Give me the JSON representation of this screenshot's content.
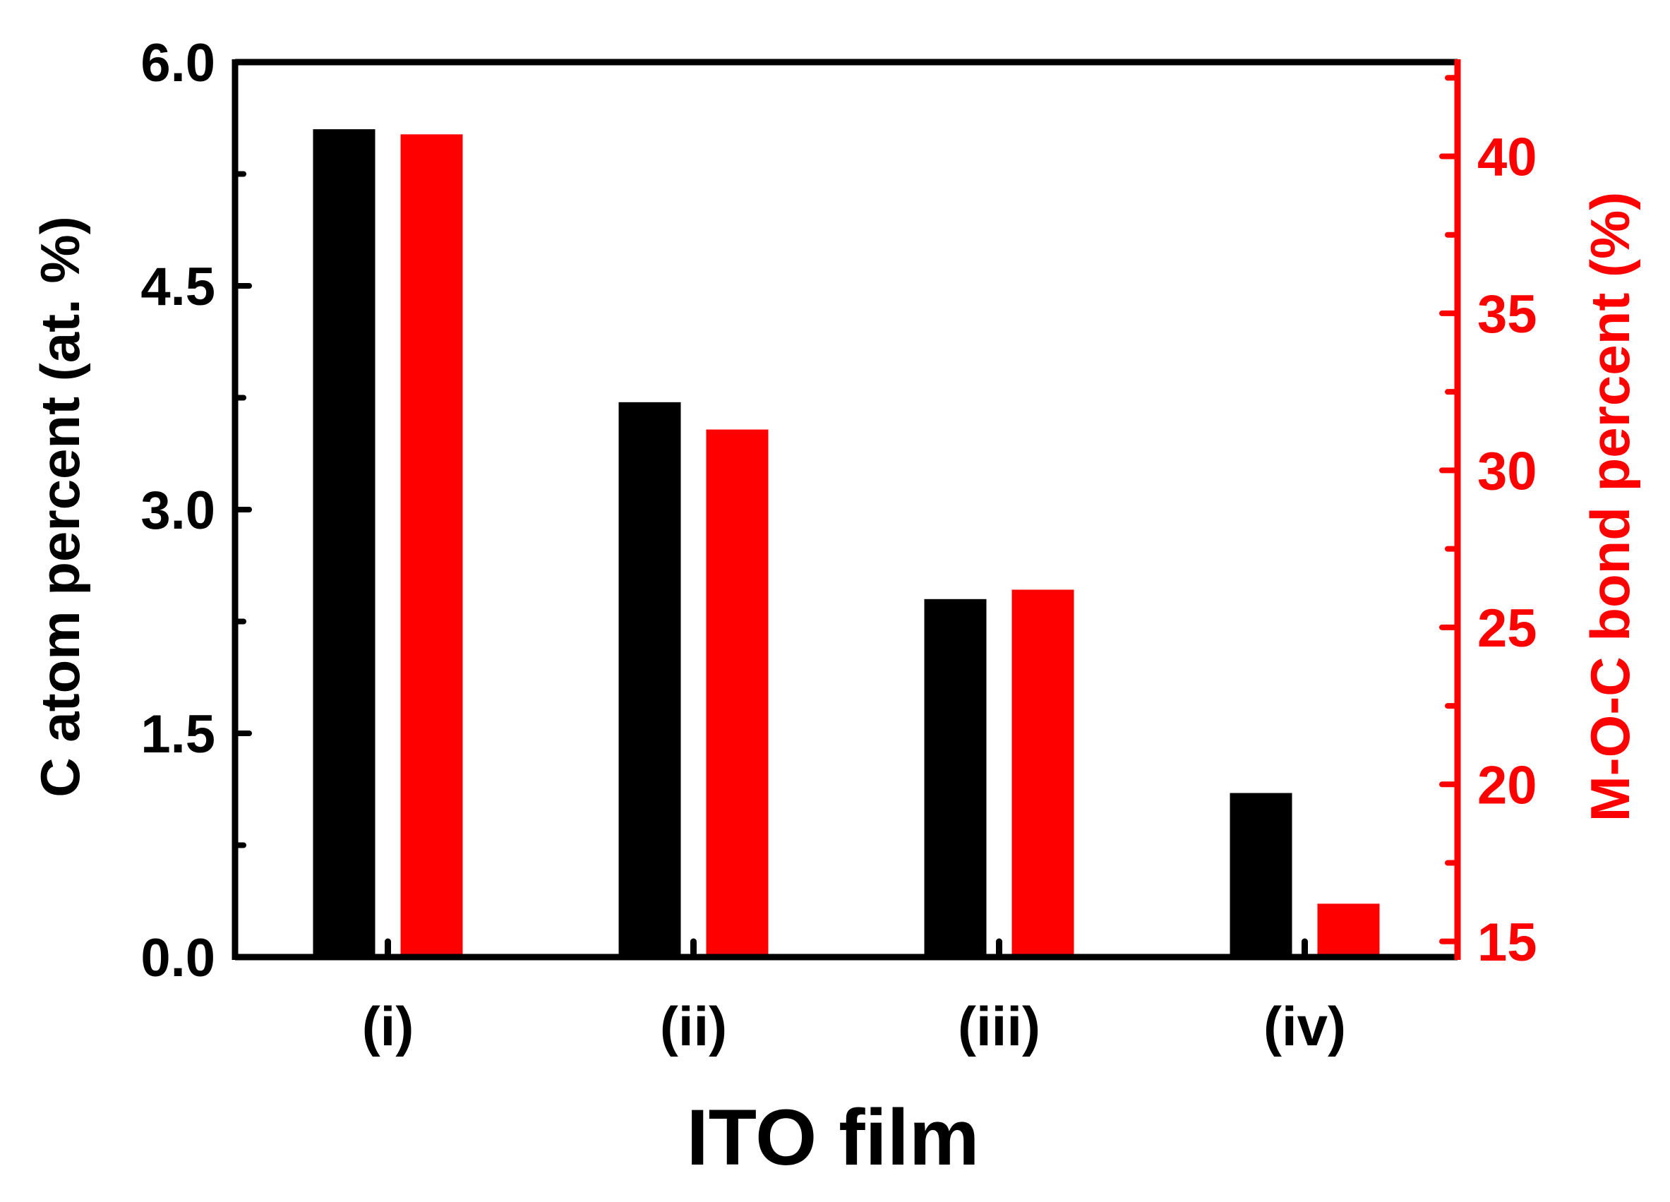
{
  "chart_data": {
    "type": "bar",
    "title": "",
    "xlabel": "ITO film",
    "ylabel": "C atom percent (at. %)",
    "y2label": "M-O-C bond percent (%)",
    "categories": [
      "(i)",
      "(ii)",
      "(iii)",
      "(iv)"
    ],
    "ylim": [
      0,
      6.0
    ],
    "y2lim": [
      14.5,
      43
    ],
    "yticks": [
      "0.0",
      "1.5",
      "3.0",
      "4.5",
      "6.0"
    ],
    "y2ticks": [
      "15",
      "20",
      "25",
      "30",
      "35",
      "40"
    ],
    "series": [
      {
        "axis": "left",
        "color": "#000000",
        "values": [
          5.55,
          3.72,
          2.4,
          1.1
        ]
      },
      {
        "axis": "right",
        "color": "#ff0000",
        "values": [
          40.7,
          31.3,
          26.2,
          16.2
        ]
      }
    ],
    "grid": false,
    "legend": "none",
    "colors": {
      "left_axis": "#000000",
      "right_axis": "#ff0000"
    }
  }
}
